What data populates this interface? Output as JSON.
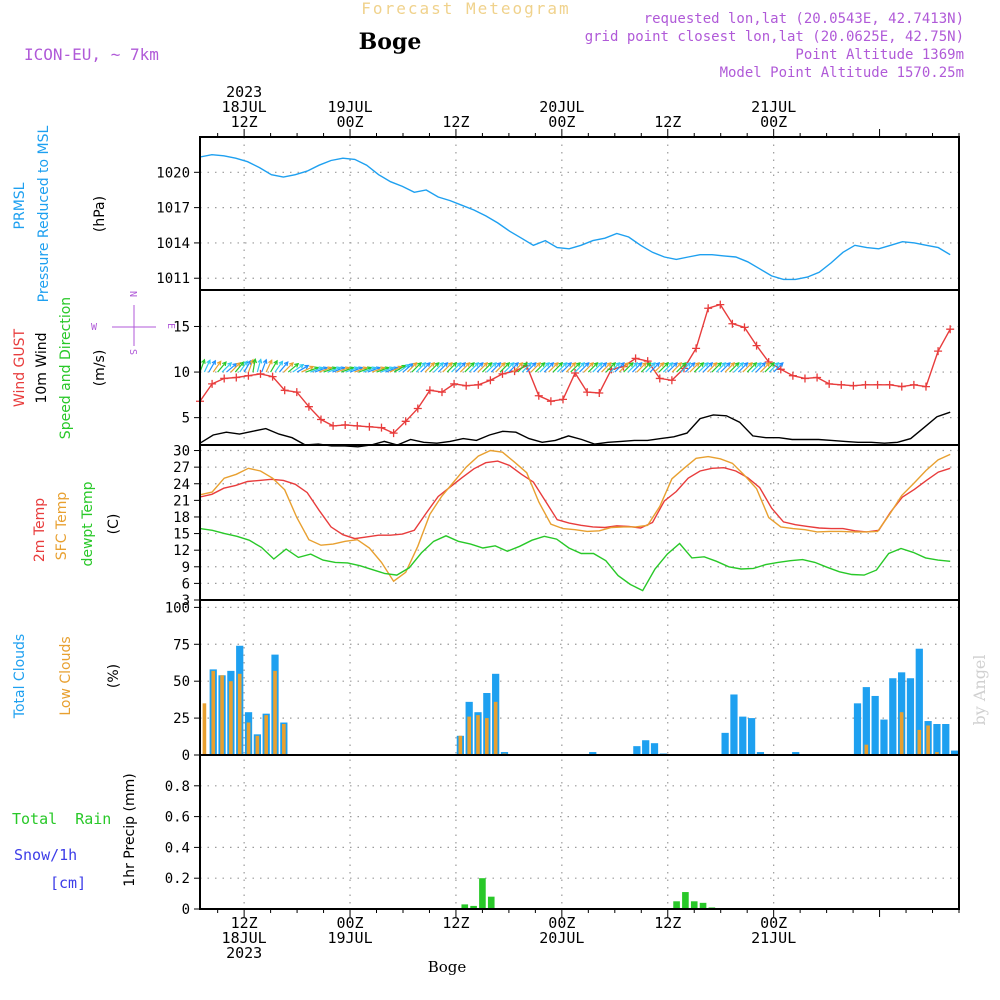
{
  "header": {
    "product_title": "Forecast Meteogram",
    "location": "Boge",
    "model": "ICON-EU, ~ 7km",
    "requested": "requested lon,lat (20.0543E, 42.7413N)",
    "grid_point": "grid point closest lon,lat (20.0625E, 42.75N)",
    "point_altitude": "Point Altitude 1369m",
    "model_altitude": "Model Point Altitude 1570.25m",
    "bottom_location": "Boge",
    "watermark": "by Angel"
  },
  "time_axis": {
    "top_labels": [
      {
        "hour": 12,
        "lines": [
          "2023",
          "18JUL",
          "12Z"
        ]
      },
      {
        "hour": 24,
        "lines": [
          "19JUL",
          "00Z"
        ]
      },
      {
        "hour": 36,
        "lines": [
          "12Z"
        ]
      },
      {
        "hour": 48,
        "lines": [
          "20JUL",
          "00Z"
        ]
      },
      {
        "hour": 60,
        "lines": [
          "12Z"
        ]
      },
      {
        "hour": 72,
        "lines": [
          "21JUL",
          "00Z"
        ]
      }
    ],
    "bottom_labels": [
      {
        "hour": 12,
        "lines": [
          "12Z",
          "18JUL",
          "2023"
        ]
      },
      {
        "hour": 24,
        "lines": [
          "00Z",
          "19JUL"
        ]
      },
      {
        "hour": 36,
        "lines": [
          "12Z"
        ]
      },
      {
        "hour": 48,
        "lines": [
          "00Z",
          "20JUL"
        ]
      },
      {
        "hour": 60,
        "lines": [
          "12Z"
        ]
      },
      {
        "hour": 72,
        "lines": [
          "00Z",
          "21JUL"
        ]
      }
    ]
  },
  "panel_labels": {
    "pressure": {
      "name": "PRMSL",
      "desc": "Pressure Reduced to MSL",
      "unit": "(hPa)"
    },
    "wind": {
      "gust": "Wind GUST",
      "wind10": "10m Wind",
      "dir": "Speed and Direction",
      "unit": "(m/s)",
      "compass_n": "N",
      "compass_s": "S",
      "compass_e": "E",
      "compass_w": "W"
    },
    "temp": {
      "t2m": "2m Temp",
      "sfc": "SFC Temp",
      "dew": "dewpt Temp",
      "unit": "(C)"
    },
    "clouds": {
      "total": "Total Clouds",
      "low": "Low Clouds",
      "unit": "(%)"
    },
    "precip": {
      "rain": "Total  Rain",
      "snow": "Snow/1h",
      "snow_unit": "[cm]",
      "unit": "1hr Precip (mm)"
    }
  },
  "chart_data": [
    {
      "type": "line",
      "title": "PRMSL Pressure Reduced to MSL",
      "ylabel": "(hPa)",
      "ylim": [
        1010,
        1023
      ],
      "yticks": [
        1011,
        1014,
        1017,
        1020
      ],
      "x_hours_start": 7,
      "x_step_hours": 1,
      "series": [
        {
          "name": "PRMSL",
          "color": "#1ea0f0",
          "values": [
            1021.3,
            1021.5,
            1021.4,
            1021.2,
            1020.9,
            1020.4,
            1019.8,
            1019.6,
            1019.8,
            1020.1,
            1020.6,
            1021.0,
            1021.2,
            1021.1,
            1020.6,
            1019.8,
            1019.2,
            1018.8,
            1018.3,
            1018.5,
            1017.9,
            1017.6,
            1017.2,
            1016.8,
            1016.3,
            1015.7,
            1015.0,
            1014.4,
            1013.8,
            1014.2,
            1013.6,
            1013.5,
            1013.8,
            1014.2,
            1014.4,
            1014.8,
            1014.5,
            1013.8,
            1013.2,
            1012.8,
            1012.6,
            1012.8,
            1013.0,
            1013.0,
            1012.9,
            1012.8,
            1012.4,
            1011.8,
            1011.2,
            1010.9,
            1010.9,
            1011.1,
            1011.5,
            1012.3,
            1013.2,
            1013.8,
            1013.6,
            1013.5,
            1013.8,
            1014.1,
            1014.0,
            1013.8,
            1013.6,
            1013.0
          ]
        }
      ]
    },
    {
      "type": "line",
      "title": "Wind GUST / 10m Wind Speed and Direction",
      "ylabel": "(m/s)",
      "ylim": [
        2,
        19
      ],
      "yticks": [
        5,
        10,
        15
      ],
      "x_hours_start": 7,
      "x_step_hours": 1,
      "series": [
        {
          "name": "Wind GUST",
          "color": "#e83c3c",
          "values": [
            6.8,
            8.7,
            9.3,
            9.4,
            9.6,
            9.8,
            9.5,
            8.0,
            7.8,
            6.2,
            4.8,
            4.1,
            4.2,
            4.1,
            4.0,
            3.9,
            3.3,
            4.6,
            6.0,
            8.0,
            7.8,
            8.7,
            8.5,
            8.6,
            9.1,
            9.8,
            10.1,
            10.7,
            7.4,
            6.8,
            7.0,
            9.9,
            7.8,
            7.7,
            10.3,
            10.6,
            11.5,
            11.2,
            9.3,
            9.1,
            10.4,
            12.6,
            17.0,
            17.4,
            15.3,
            14.9,
            12.9,
            11.1,
            10.3,
            9.6,
            9.3,
            9.4,
            8.7,
            8.6,
            8.5,
            8.6,
            8.6,
            8.6,
            8.4,
            8.6,
            8.4,
            12.3,
            14.7
          ]
        },
        {
          "name": "10m Wind",
          "color": "#000000",
          "values": [
            2.2,
            3.1,
            3.4,
            3.2,
            3.5,
            3.8,
            3.2,
            2.8,
            2.0,
            2.1,
            1.9,
            1.9,
            1.8,
            2.0,
            2.4,
            2.0,
            2.6,
            2.3,
            2.2,
            2.4,
            2.7,
            2.5,
            3.1,
            3.5,
            3.4,
            2.7,
            2.3,
            2.5,
            3.0,
            2.6,
            2.1,
            2.3,
            2.4,
            2.5,
            2.5,
            2.7,
            2.9,
            3.3,
            4.9,
            5.3,
            5.2,
            4.5,
            3.0,
            2.8,
            2.8,
            2.6,
            2.6,
            2.6,
            2.5,
            2.4,
            2.3,
            2.3,
            2.2,
            2.3,
            2.7,
            3.9,
            5.1,
            5.6
          ]
        }
      ]
    },
    {
      "type": "line",
      "title": "2m Temp / SFC Temp / dewpt Temp",
      "ylabel": "(C)",
      "ylim": [
        3,
        31
      ],
      "yticks": [
        3,
        6,
        9,
        12,
        15,
        18,
        21,
        24,
        27,
        30
      ],
      "x_hours_start": 7,
      "x_step_hours": 1,
      "series": [
        {
          "name": "2m Temp",
          "color": "#e83c3c",
          "values": [
            21.6,
            22.1,
            23.2,
            23.7,
            24.4,
            24.6,
            24.8,
            24.6,
            23.9,
            22.4,
            19.2,
            16.2,
            14.8,
            14.1,
            14.4,
            14.7,
            14.7,
            14.9,
            15.6,
            18.7,
            21.7,
            23.4,
            25.1,
            26.7,
            27.8,
            28.1,
            27.3,
            25.7,
            24.3,
            20.9,
            17.5,
            16.9,
            16.5,
            16.2,
            16.1,
            16.4,
            16.3,
            16.0,
            17.0,
            20.9,
            22.6,
            25.0,
            26.3,
            26.8,
            26.9,
            26.3,
            25.1,
            23.3,
            19.6,
            17.1,
            16.6,
            16.3,
            16.0,
            15.9,
            15.9,
            15.5,
            15.3,
            15.6,
            18.9,
            21.6,
            23.0,
            24.6,
            26.1,
            26.8
          ]
        },
        {
          "name": "SFC Temp",
          "color": "#e8a030",
          "values": [
            22.0,
            22.5,
            25.0,
            25.7,
            26.8,
            26.3,
            25.0,
            22.9,
            17.9,
            13.9,
            12.9,
            13.1,
            13.6,
            13.9,
            12.4,
            9.8,
            6.4,
            8.0,
            12.7,
            18.5,
            21.8,
            24.4,
            27.0,
            29.0,
            30.0,
            29.7,
            27.9,
            26.0,
            20.7,
            16.7,
            15.9,
            15.7,
            15.4,
            15.5,
            16.1,
            16.2,
            16.2,
            16.5,
            19.9,
            24.9,
            26.8,
            28.6,
            28.9,
            28.5,
            27.7,
            25.5,
            23.1,
            17.9,
            16.2,
            15.9,
            15.7,
            15.3,
            15.4,
            15.4,
            15.3,
            15.3,
            15.4,
            18.5,
            21.9,
            24.1,
            26.4,
            28.3,
            29.3
          ]
        },
        {
          "name": "dewpt Temp",
          "color": "#28c828",
          "values": [
            15.9,
            15.6,
            15.0,
            14.5,
            13.8,
            12.5,
            10.4,
            12.2,
            10.7,
            11.3,
            10.2,
            9.8,
            9.7,
            9.2,
            8.5,
            7.8,
            7.5,
            8.8,
            11.5,
            13.6,
            14.6,
            13.6,
            13.1,
            12.4,
            12.8,
            11.8,
            12.7,
            13.8,
            14.5,
            14.0,
            12.4,
            11.4,
            11.4,
            10.1,
            7.4,
            5.8,
            4.7,
            8.6,
            11.3,
            13.2,
            10.6,
            10.8,
            10.0,
            9.0,
            8.6,
            8.7,
            9.4,
            9.8,
            10.1,
            10.3,
            9.8,
            8.9,
            8.1,
            7.6,
            7.5,
            8.4,
            11.4,
            12.3,
            11.6,
            10.6,
            10.2,
            10.0
          ]
        }
      ]
    },
    {
      "type": "bar",
      "title": "Total Clouds / Low Clouds",
      "ylabel": "(%)",
      "ylim": [
        0,
        105
      ],
      "yticks": [
        0,
        25,
        50,
        75,
        100
      ],
      "x_hours_start": 7,
      "x_step_hours": 1,
      "series": [
        {
          "name": "Total Clouds",
          "color": "#1ea0f0",
          "values": [
            0,
            58,
            54,
            57,
            74,
            29,
            14,
            28,
            68,
            22,
            0,
            0,
            0,
            0,
            0,
            0,
            0,
            0,
            0,
            0,
            0,
            0,
            0,
            0,
            0,
            0,
            0,
            0,
            0,
            13,
            36,
            29,
            42,
            55,
            2,
            0,
            0,
            0,
            0,
            0,
            0,
            0,
            0,
            0,
            2,
            0,
            0,
            0,
            0,
            6,
            10,
            8,
            1,
            0,
            0,
            0,
            0,
            0,
            0,
            15,
            41,
            26,
            25,
            2,
            0,
            0,
            0,
            2,
            0,
            0,
            0,
            0,
            0,
            0,
            35,
            46,
            40,
            24,
            52,
            56,
            52,
            72,
            23,
            21,
            21,
            3
          ]
        },
        {
          "name": "Low Clouds",
          "color": "#e8a030",
          "values": [
            35,
            57,
            54,
            50,
            55,
            22,
            13,
            27,
            57,
            21,
            0,
            0,
            0,
            0,
            0,
            0,
            0,
            0,
            0,
            0,
            0,
            0,
            0,
            0,
            0,
            0,
            0,
            0,
            0,
            13,
            26,
            27,
            25,
            36,
            1,
            0,
            0,
            0,
            0,
            0,
            0,
            0,
            0,
            0,
            0,
            0,
            0,
            0,
            0,
            0,
            0,
            0,
            0,
            0,
            0,
            0,
            0,
            0,
            0,
            0,
            0,
            0,
            0,
            0,
            0,
            0,
            0,
            0,
            0,
            0,
            0,
            0,
            0,
            0,
            0,
            7,
            0,
            0,
            0,
            29,
            0,
            17,
            20,
            2,
            0,
            0
          ]
        }
      ]
    },
    {
      "type": "bar",
      "title": "Total Rain / Snow/1h [cm]",
      "ylabel": "1hr Precip (mm)",
      "ylim": [
        0,
        1.0
      ],
      "yticks": [
        0,
        0.2,
        0.4,
        0.6,
        0.8
      ],
      "bars_hour_start": 6,
      "bars_step_hours": 1,
      "series": [
        {
          "name": "Total Rain",
          "color": "#28c828",
          "values": [
            0,
            0,
            0,
            0,
            0,
            0,
            0,
            0,
            0,
            0,
            0,
            0,
            0,
            0,
            0,
            0,
            0,
            0,
            0,
            0,
            0,
            0,
            0,
            0,
            0,
            0,
            0,
            0,
            0,
            0,
            0,
            0.03,
            0.02,
            0.2,
            0.08,
            0,
            0,
            0,
            0,
            0,
            0,
            0,
            0,
            0,
            0,
            0,
            0,
            0,
            0,
            0,
            0,
            0,
            0,
            0,
            0,
            0.05,
            0.11,
            0.05,
            0.04,
            0.01,
            0,
            0,
            0,
            0,
            0,
            0,
            0,
            0,
            0,
            0,
            0,
            0,
            0,
            0,
            0,
            0,
            0,
            0,
            0,
            0,
            0,
            0,
            0,
            0,
            0,
            0
          ]
        },
        {
          "name": "Snow/1h",
          "color": "#3c3ce8",
          "values": []
        }
      ]
    }
  ],
  "wind_arrows": {
    "start_hour": 7,
    "step_hours": 0.5,
    "directions_deg": [
      200,
      205,
      210,
      215,
      220,
      225,
      230,
      225,
      220,
      215,
      210,
      200,
      190,
      195,
      200,
      205,
      210,
      215,
      220,
      225,
      230,
      235,
      240,
      245,
      250,
      250,
      250,
      250,
      250,
      250,
      250,
      250,
      250,
      250,
      250,
      250,
      250,
      250,
      250,
      250,
      250,
      250,
      250,
      245,
      240,
      235,
      230,
      225,
      225,
      225,
      225,
      225,
      225,
      225,
      225,
      225,
      225,
      225,
      225,
      225,
      225,
      225,
      225,
      225,
      225,
      225,
      225,
      225,
      225,
      225,
      225,
      225,
      225,
      225,
      225,
      225,
      225,
      225,
      225,
      225,
      225,
      225,
      225,
      225,
      225,
      225,
      225,
      225,
      225,
      225,
      225,
      225,
      225,
      225,
      225,
      225,
      225,
      225,
      225,
      225,
      225,
      225,
      225,
      225,
      225,
      225,
      225,
      225,
      225,
      225,
      225,
      225,
      225,
      225,
      225,
      225,
      225,
      225,
      225,
      225,
      225,
      225,
      225,
      225,
      225,
      225,
      225,
      225,
      225,
      225,
      225
    ],
    "speed_scale_colors": [
      "#28c828",
      "#30c8f0",
      "#1e90ff",
      "#e8a030"
    ]
  }
}
